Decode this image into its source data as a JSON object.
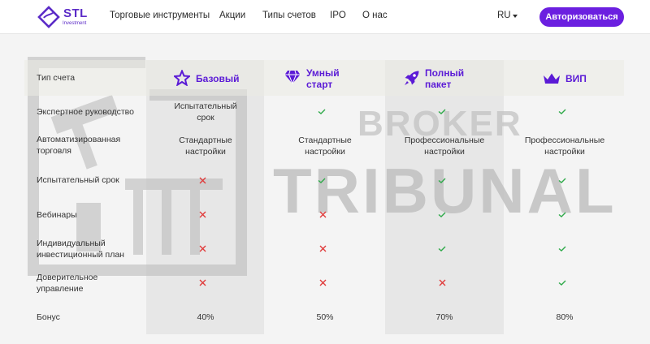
{
  "header": {
    "logo_text": "STL",
    "logo_sub": "Investment",
    "nav": [
      "Торговые инструменты",
      "Акции",
      "Типы счетов",
      "IPO",
      "О нас"
    ],
    "lang": "RU",
    "auth_button": "Авторизоваться"
  },
  "watermark": {
    "line1": "BROKER",
    "line2": "TRIBUNAL"
  },
  "table": {
    "head_label": "Тип счета",
    "plans": [
      {
        "name": "Базовый",
        "icon": "star-icon"
      },
      {
        "name_line1": "Умный",
        "name_line2": "старт",
        "icon": "diamond-icon"
      },
      {
        "name_line1": "Полный",
        "name_line2": "пакет",
        "icon": "rocket-icon"
      },
      {
        "name": "ВИП",
        "icon": "crown-icon"
      }
    ],
    "rows": [
      {
        "label": "Экспертное руководство",
        "values": [
          "Испытательный срок",
          "check",
          "check",
          "check"
        ]
      },
      {
        "label": "Автоматизированная торговля",
        "values": [
          "Стандартные настройки",
          "Стандартные настройки",
          "Профессиональные настройки",
          "Профессиональные настройки"
        ]
      },
      {
        "label": "Испытательный срок",
        "values": [
          "cross",
          "check",
          "check",
          "check"
        ]
      },
      {
        "label": "Вебинары",
        "values": [
          "cross",
          "cross",
          "check",
          "check"
        ]
      },
      {
        "label": "Индивидуальный инвестиционный план",
        "values": [
          "cross",
          "cross",
          "check",
          "check"
        ]
      },
      {
        "label": "Доверительное управление",
        "values": [
          "cross",
          "cross",
          "cross",
          "check"
        ]
      },
      {
        "label": "Бонус",
        "values": [
          "40%",
          "50%",
          "70%",
          "80%"
        ]
      }
    ],
    "text_cells": {
      "r0c0_l1": "Испытательный",
      "r0c0_l2": "срок",
      "r1_label_l1": "Автоматизированная",
      "r1_label_l2": "торговля",
      "r1c0_l1": "Стандартные",
      "r1c0_l2": "настройки",
      "r1c1_l1": "Стандартные",
      "r1c1_l2": "настройки",
      "r1c2_l1": "Профессиональные",
      "r1c2_l2": "настройки",
      "r1c3_l1": "Профессиональные",
      "r1c3_l2": "настройки",
      "r4_label_l1": "Индивидуальный",
      "r4_label_l2": "инвестиционный план",
      "r5_label_l1": "Доверительное",
      "r5_label_l2": "управление"
    }
  },
  "colors": {
    "accent": "#6b1fe0",
    "check": "#2faa4a",
    "cross": "#e03a3a"
  }
}
